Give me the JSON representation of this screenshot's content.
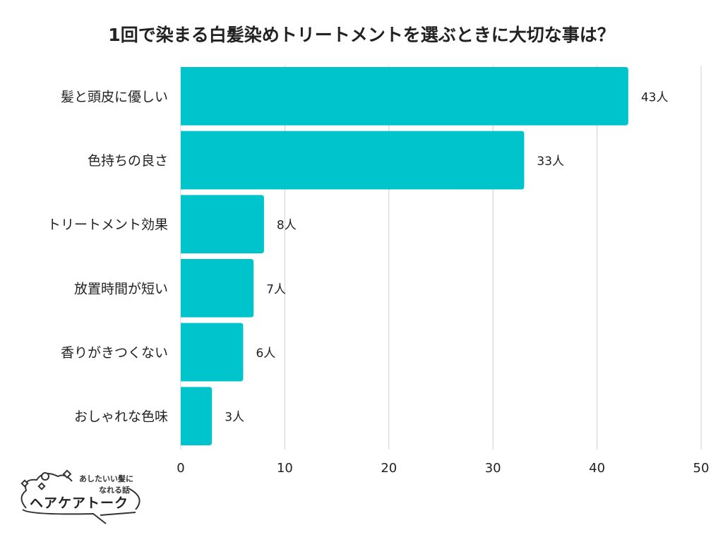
{
  "chart_data": {
    "type": "bar",
    "orientation": "horizontal",
    "title": "1回で染まる白髪染めトリートメントを選ぶときに大切な事は？",
    "categories": [
      "髪と頭皮に優しい",
      "色持ちの良さ",
      "トリートメント効果",
      "放置時間が短い",
      "香りがきつくない",
      "おしゃれな色味"
    ],
    "values": [
      43,
      33,
      8,
      7,
      6,
      3
    ],
    "data_labels": [
      "43人",
      "33人",
      "8人",
      "7人",
      "6人",
      "3人"
    ],
    "xlim": [
      0,
      50
    ],
    "xticks": [
      "0",
      "10",
      "20",
      "30",
      "40",
      "50"
    ],
    "grid": true,
    "bar_color": "#00c4cc",
    "grid_color": "#d0d0d0"
  },
  "logo": {
    "line1": "あしたいい髪に",
    "line2": "なれる話",
    "name": "ヘアケアトーク"
  }
}
